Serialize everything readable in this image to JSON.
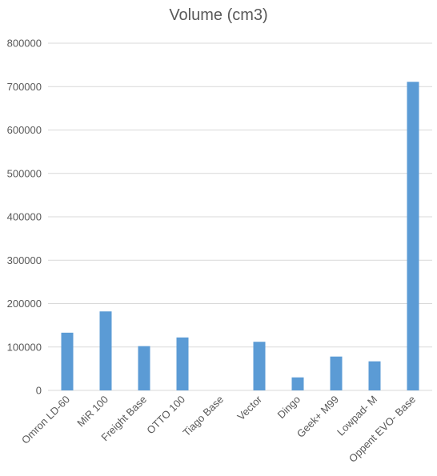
{
  "chart_data": {
    "type": "bar",
    "title": "Volume (cm3)",
    "categories": [
      "Omron LD-60",
      "MiR 100",
      "Freight Base",
      "OTTO 100",
      "Tiago Base",
      "Vector",
      "Dingo",
      "Geek+ M99",
      "Lowpad- M",
      "Oppent EVO- Base"
    ],
    "series": [
      {
        "values": [
          133000,
          182000,
          102000,
          122000,
          0,
          112000,
          30000,
          78000,
          67000,
          711000
        ]
      }
    ],
    "ylim": [
      0,
      800000
    ],
    "yticks": [
      "0",
      "100000",
      "200000",
      "300000",
      "400000",
      "500000",
      "600000",
      "700000",
      "800000"
    ],
    "grid": true,
    "legend": "none",
    "colors": {
      "bar": "#5B9BD5",
      "grid": "#D9D9D9",
      "text": "#595959"
    }
  }
}
